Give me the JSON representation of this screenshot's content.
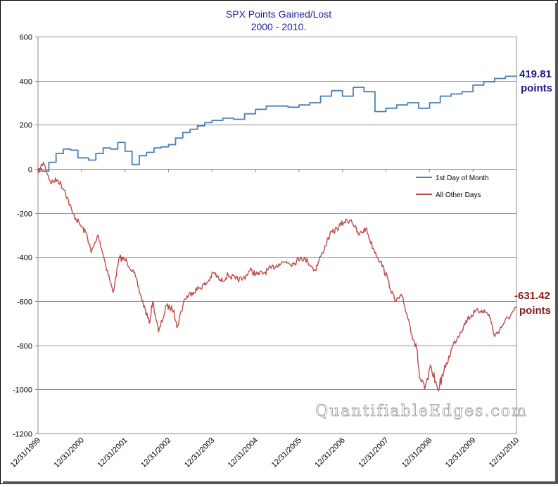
{
  "chart_data": {
    "type": "line",
    "title": "SPX Points Gained/Lost",
    "subtitle": "2000 - 2010.",
    "ylim": [
      -1200,
      600
    ],
    "yticks": [
      600,
      400,
      200,
      0,
      -200,
      -400,
      -600,
      -800,
      -1000,
      -1200
    ],
    "xlim": [
      "1999-12-31",
      "2010-12-31"
    ],
    "xtick_labels": [
      "12/31/1999",
      "12/31/2000",
      "12/31/2001",
      "12/31/2002",
      "12/31/2003",
      "12/31/2004",
      "12/31/2005",
      "12/31/2006",
      "12/31/2007",
      "12/31/2008",
      "12/31/2009",
      "12/31/2010"
    ],
    "grid": true,
    "legend_position": "right-middle",
    "series": [
      {
        "name": "1st Day of Month",
        "color": "#4a7ebb",
        "step": true,
        "x": [
          "1999-12-31",
          "2000-01-31",
          "2000-03-31",
          "2000-05-31",
          "2000-07-31",
          "2000-09-30",
          "2000-11-30",
          "2001-02-28",
          "2001-04-30",
          "2001-06-30",
          "2001-08-31",
          "2001-10-31",
          "2001-12-31",
          "2002-02-28",
          "2002-04-30",
          "2002-06-30",
          "2002-08-31",
          "2002-10-31",
          "2002-12-31",
          "2003-02-28",
          "2003-04-30",
          "2003-06-30",
          "2003-08-31",
          "2003-10-31",
          "2003-12-31",
          "2004-03-31",
          "2004-06-30",
          "2004-09-30",
          "2004-12-31",
          "2005-03-31",
          "2005-06-30",
          "2005-09-30",
          "2005-12-31",
          "2006-03-31",
          "2006-06-30",
          "2006-09-30",
          "2006-12-31",
          "2007-03-31",
          "2007-06-30",
          "2007-09-30",
          "2007-12-31",
          "2008-03-31",
          "2008-06-30",
          "2008-09-30",
          "2008-12-31",
          "2009-03-31",
          "2009-06-30",
          "2009-09-30",
          "2009-12-31",
          "2010-03-31",
          "2010-06-30",
          "2010-09-30",
          "2010-12-31"
        ],
        "y": [
          0,
          -10,
          30,
          70,
          90,
          85,
          50,
          40,
          70,
          95,
          90,
          120,
          80,
          20,
          60,
          75,
          95,
          100,
          110,
          140,
          165,
          180,
          195,
          210,
          220,
          230,
          225,
          250,
          270,
          285,
          285,
          280,
          290,
          300,
          330,
          355,
          330,
          370,
          350,
          260,
          275,
          290,
          300,
          275,
          300,
          330,
          340,
          350,
          380,
          395,
          410,
          420,
          419.81
        ]
      },
      {
        "name": "All Other Days",
        "color": "#be4b48",
        "x": [
          "1999-12-31",
          "2000-02-15",
          "2000-04-15",
          "2000-06-15",
          "2000-08-15",
          "2000-10-15",
          "2000-12-15",
          "2001-02-15",
          "2001-03-22",
          "2001-05-20",
          "2001-07-15",
          "2001-09-21",
          "2001-11-15",
          "2002-01-15",
          "2002-03-15",
          "2002-05-15",
          "2002-07-23",
          "2002-08-20",
          "2002-10-09",
          "2002-12-15",
          "2003-02-15",
          "2003-03-11",
          "2003-05-15",
          "2003-07-15",
          "2003-09-15",
          "2003-11-15",
          "2004-01-15",
          "2004-03-15",
          "2004-05-15",
          "2004-07-15",
          "2004-09-15",
          "2004-11-15",
          "2005-01-15",
          "2005-03-15",
          "2005-05-15",
          "2005-07-15",
          "2005-09-15",
          "2005-11-15",
          "2006-01-15",
          "2006-03-15",
          "2006-05-15",
          "2006-07-15",
          "2006-09-15",
          "2006-11-15",
          "2007-01-15",
          "2007-03-15",
          "2007-05-15",
          "2007-07-15",
          "2007-09-15",
          "2007-11-15",
          "2008-01-15",
          "2008-03-15",
          "2008-05-15",
          "2008-07-15",
          "2008-09-15",
          "2008-10-10",
          "2008-11-20",
          "2009-01-15",
          "2009-03-09",
          "2009-05-15",
          "2009-07-15",
          "2009-09-15",
          "2009-11-15",
          "2010-01-15",
          "2010-03-15",
          "2010-05-15",
          "2010-07-02",
          "2010-09-15",
          "2010-11-15",
          "2010-12-31"
        ],
        "y": [
          -20,
          30,
          -60,
          -50,
          -100,
          -200,
          -250,
          -300,
          -380,
          -300,
          -420,
          -560,
          -400,
          -420,
          -470,
          -580,
          -700,
          -600,
          -740,
          -620,
          -640,
          -720,
          -590,
          -560,
          -540,
          -520,
          -470,
          -510,
          -480,
          -500,
          -500,
          -460,
          -480,
          -470,
          -450,
          -430,
          -420,
          -430,
          -400,
          -420,
          -460,
          -380,
          -300,
          -270,
          -240,
          -230,
          -300,
          -270,
          -360,
          -420,
          -500,
          -600,
          -580,
          -700,
          -820,
          -950,
          -1000,
          -900,
          -1000,
          -900,
          -800,
          -740,
          -680,
          -650,
          -640,
          -660,
          -760,
          -700,
          -660,
          -631.42
        ]
      }
    ],
    "annotations": [
      {
        "value": "419.81",
        "unit": "points",
        "series": "1st Day of Month"
      },
      {
        "value": "-631.42",
        "unit": "points",
        "series": "All Other Days"
      }
    ],
    "watermark": "QuantifiableEdges.com"
  }
}
